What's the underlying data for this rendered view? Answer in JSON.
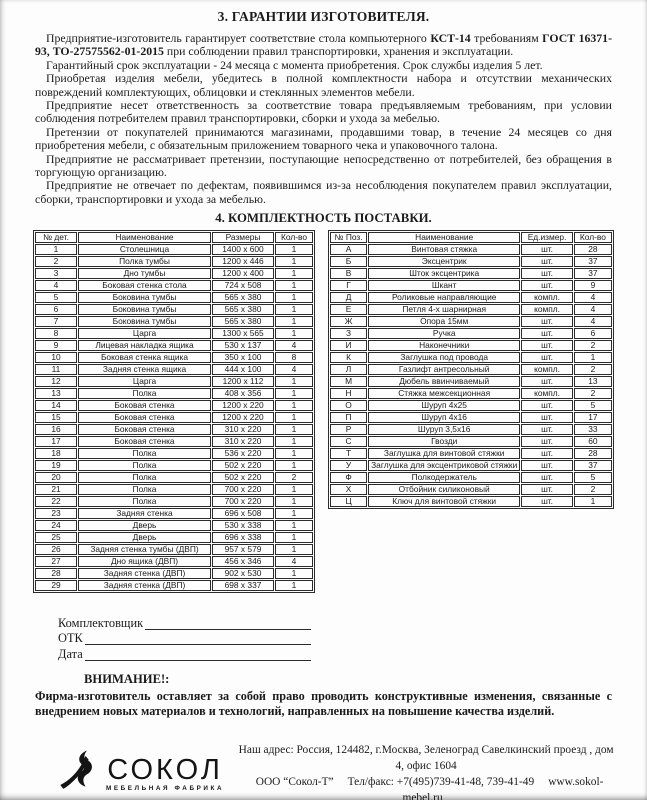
{
  "warranty": {
    "title": "3. ГАРАНТИИ ИЗГОТОВИТЕЛЯ.",
    "p1": {
      "a": "Предприятие-изготовитель гарантирует соответствие стола компьютерного ",
      "b": "КСТ-14",
      "c": " требованиям ",
      "d": "ГОСТ 16371-93, ТО-27575562-01-2015",
      "e": " при соблюдении правил транспортировки, хранения и эксплуатации."
    },
    "paragraphs": [
      "Гарантийный срок эксплуатации - 24 месяца с момента приобретения. Срок службы изделия 5 лет.",
      "Приобретая изделия мебели, убедитесь в полной комплектности набора и отсутствии механических повреждений комплектующих, облицовки и стеклянных элементов мебели.",
      "Предприятие несет ответственность за соответствие товара предъявляемым требованиям, при условии соблюдения потребителем правил транспортировки, сборки и ухода за мебелью.",
      "Претензии от покупателей принимаются магазинами, продавшими товар, в течение 24 месяцев со дня приобретения мебели, с обязательным приложением товарного чека и упаковочного талона.",
      "Предприятие не рассматривает претензии, поступающие непосредственно от потребителей, без обращения в торгующую организацию.",
      "Предприятие не отвечает по дефектам, появившимся из-за несоблюдения покупателем правил эксплуатации, сборки, транспортировки и ухода за мебелью."
    ]
  },
  "delivery": {
    "title": "4. КОМПЛЕКТНОСТЬ ПОСТАВКИ.",
    "parts_table": {
      "headers": [
        "№ дет.",
        "Наименование",
        "Размеры",
        "Кол-во"
      ],
      "rows": [
        [
          "1",
          "Столешница",
          "1400 x 600",
          "1"
        ],
        [
          "2",
          "Полка тумбы",
          "1200 x 446",
          "1"
        ],
        [
          "3",
          "Дно тумбы",
          "1200 x 400",
          "1"
        ],
        [
          "4",
          "Боковая стенка стола",
          "724 x 508",
          "1"
        ],
        [
          "5",
          "Боковина тумбы",
          "565 x 380",
          "1"
        ],
        [
          "6",
          "Боковина тумбы",
          "565 x 380",
          "1"
        ],
        [
          "7",
          "Боковина тумбы",
          "565 x 380",
          "1"
        ],
        [
          "8",
          "Царга",
          "1300 x 565",
          "1"
        ],
        [
          "9",
          "Лицевая накладка ящика",
          "530 x 137",
          "4"
        ],
        [
          "10",
          "Боковая стенка ящика",
          "350 x 100",
          "8"
        ],
        [
          "11",
          "Задняя стенка ящика",
          "444 x 100",
          "4"
        ],
        [
          "12",
          "Царга",
          "1200 x 112",
          "1"
        ],
        [
          "13",
          "Полка",
          "408 x 356",
          "1"
        ],
        [
          "14",
          "Боковая стенка",
          "1200 x 220",
          "1"
        ],
        [
          "15",
          "Боковая стенка",
          "1200 x 220",
          "1"
        ],
        [
          "16",
          "Боковая стенка",
          "310 x 220",
          "1"
        ],
        [
          "17",
          "Боковая стенка",
          "310 x 220",
          "1"
        ],
        [
          "18",
          "Полка",
          "536 x 220",
          "1"
        ],
        [
          "19",
          "Полка",
          "502 x 220",
          "1"
        ],
        [
          "20",
          "Полка",
          "502 x 220",
          "2"
        ],
        [
          "21",
          "Полка",
          "700 x 220",
          "1"
        ],
        [
          "22",
          "Полка",
          "700 x 220",
          "1"
        ],
        [
          "23",
          "Задняя стенка",
          "696 x 508",
          "1"
        ],
        [
          "24",
          "Дверь",
          "530 x 338",
          "1"
        ],
        [
          "25",
          "Дверь",
          "696 x 338",
          "1"
        ],
        [
          "26",
          "Задняя стенка тумбы (ДВП)",
          "957 x 579",
          "1"
        ],
        [
          "27",
          "Дно ящика (ДВП)",
          "456 x 346",
          "4"
        ],
        [
          "28",
          "Задняя стенка (ДВП)",
          "902 x 530",
          "1"
        ],
        [
          "29",
          "Задняя стенка (ДВП)",
          "698 x 337",
          "1"
        ]
      ]
    },
    "hardware_table": {
      "headers": [
        "№ Поз.",
        "Наименование",
        "Ед.измер.",
        "Кол-во"
      ],
      "rows": [
        [
          "А",
          "Винтовая стяжка",
          "шт.",
          "28"
        ],
        [
          "Б",
          "Эксцентрик",
          "шт.",
          "37"
        ],
        [
          "В",
          "Шток эксцентрика",
          "шт.",
          "37"
        ],
        [
          "Г",
          "Шкант",
          "шт.",
          "9"
        ],
        [
          "Д",
          "Роликовые направляющие",
          "компл.",
          "4"
        ],
        [
          "Е",
          "Петля 4-х шарнирная",
          "компл.",
          "4"
        ],
        [
          "Ж",
          "Опора 15мм",
          "шт.",
          "4"
        ],
        [
          "З",
          "Ручка",
          "шт.",
          "6"
        ],
        [
          "И",
          "Наконечники",
          "шт.",
          "2"
        ],
        [
          "К",
          "Заглушка под провода",
          "шт.",
          "1"
        ],
        [
          "Л",
          "Газлифт антресольный",
          "компл.",
          "2"
        ],
        [
          "М",
          "Дюбель ввинчиваемый",
          "шт.",
          "13"
        ],
        [
          "Н",
          "Стяжка межсекционная",
          "компл.",
          "2"
        ],
        [
          "О",
          "Шуруп 4х25",
          "шт.",
          "5"
        ],
        [
          "П",
          "Шуруп 4х16",
          "шт.",
          "17"
        ],
        [
          "Р",
          "Шуруп 3,5х16",
          "шт.",
          "33"
        ],
        [
          "С",
          "Гвозди",
          "шт.",
          "60"
        ],
        [
          "Т",
          "Заглушка для винтовой стяжки",
          "шт.",
          "28"
        ],
        [
          "У",
          "Заглушка для эксцентриковой стяжки",
          "шт.",
          "37"
        ],
        [
          "Ф",
          "Полкодержатель",
          "шт.",
          "5"
        ],
        [
          "Х",
          "Отбойник силиконовый",
          "шт.",
          "2"
        ],
        [
          "Ц",
          "Ключ для винтовой стяжки",
          "шт.",
          "1"
        ]
      ]
    }
  },
  "signature": {
    "lines": [
      "Комплектовщик",
      "ОТК",
      "Дата"
    ]
  },
  "notice": {
    "title": "ВНИМАНИЕ!:",
    "text": "Фирма-изготовитель оставляет за собой право проводить конструктивные изменения, связанные с внедрением новых материалов и технологий, направленных на повышение качества изделий."
  },
  "footer": {
    "logo_text": "СОКОЛ",
    "logo_subtext": "МЕБЕЛЬНАЯ ФАБРИКА",
    "address_line1": "Наш адрес: Россия, 124482, г.Москва, Зеленоград Савелкинский проезд , дом 4, офис 1604",
    "org": "ООО “Сокол-Т”",
    "phone": "Тел/факс: +7(495)739-41-48, 739-41-49",
    "website": "www.sokol-mebel.ru",
    "ink_color": "#141414"
  }
}
